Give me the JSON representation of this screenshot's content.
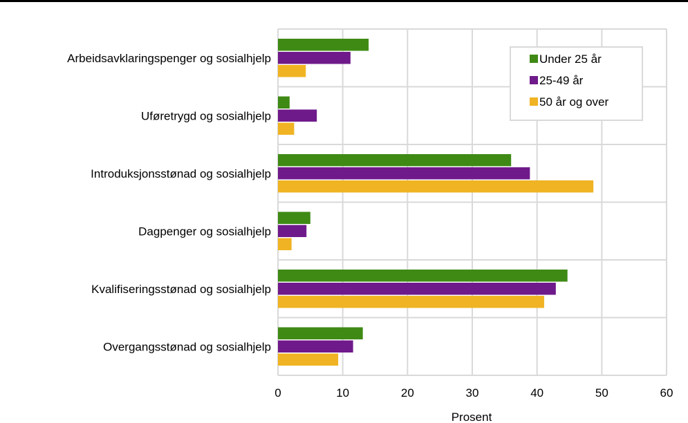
{
  "chart_data": {
    "type": "bar",
    "orientation": "horizontal",
    "categories": [
      "Arbeidsavklaringspenger og sosialhjelp",
      "Uføretrygd og sosialhjelp",
      "Introduksjonsstønad og sosialhjelp",
      "Dagpenger og sosialhjelp",
      "Kvalifiseringsstønad og sosialhjelp",
      "Overgangsstønad og sosialhjelp"
    ],
    "series": [
      {
        "name": "Under 25 år",
        "color": "#3f8a15",
        "values": [
          14.0,
          1.8,
          36.0,
          5.0,
          44.7,
          13.1
        ]
      },
      {
        "name": "25-49 år",
        "color": "#6f1a8a",
        "values": [
          11.2,
          6.0,
          38.9,
          4.4,
          42.9,
          11.6
        ]
      },
      {
        "name": "50 år og over",
        "color": "#f0b323",
        "values": [
          4.3,
          2.5,
          48.7,
          2.1,
          41.1,
          9.3
        ]
      }
    ],
    "xlabel": "Prosent",
    "ylabel": "",
    "xlim": [
      0,
      60
    ],
    "xticks": [
      "0",
      "10",
      "20",
      "30",
      "40",
      "50",
      "60"
    ],
    "grid": true,
    "legend_position": "top-right"
  }
}
